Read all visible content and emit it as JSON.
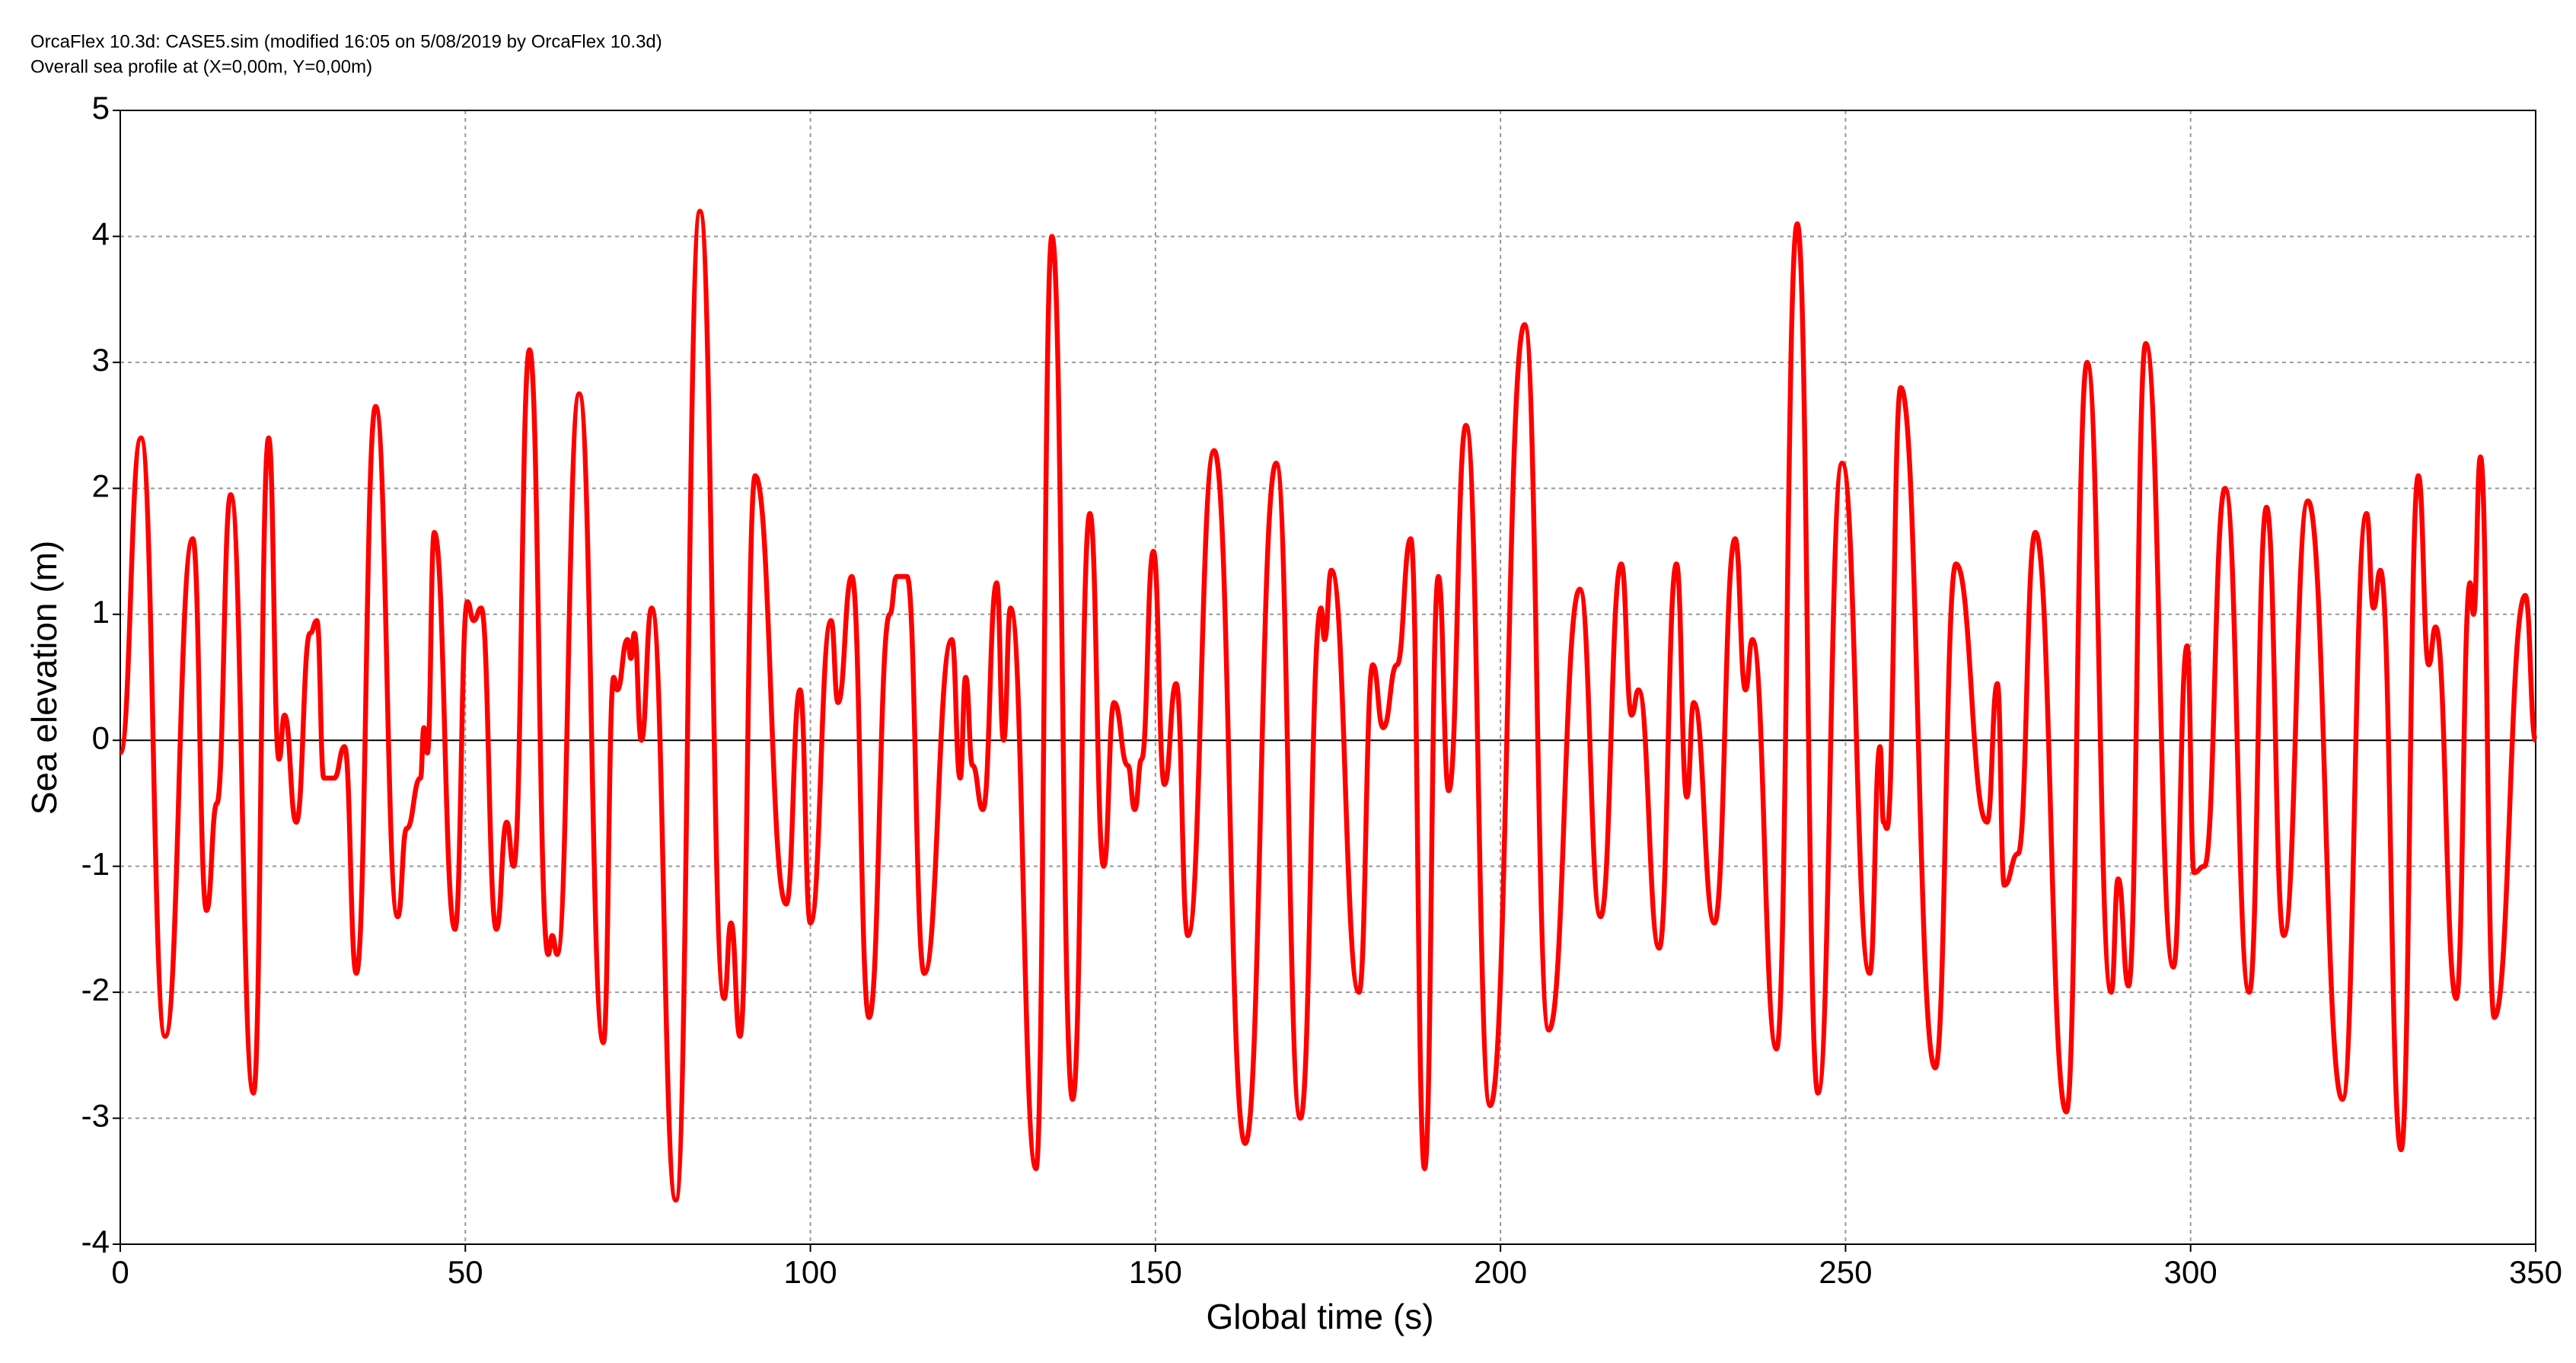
{
  "chart_data": {
    "type": "line",
    "title": "OrcaFlex 10.3d: CASE5.sim (modified 16:05 on 5/08/2019 by OrcaFlex 10.3d)",
    "subtitle": "Overall sea profile at (X=0,00m, Y=0,00m)",
    "x_label": "Global time (s)",
    "y_label": "Sea elevation (m)",
    "xlim": [
      0,
      350
    ],
    "xticks": [
      0,
      50,
      100,
      150,
      200,
      250,
      300,
      350
    ],
    "ylim": [
      -4,
      5
    ],
    "yticks": [
      -4,
      -3,
      -2,
      -1,
      0,
      1,
      2,
      3,
      4,
      5
    ],
    "grid": true,
    "series": [
      {
        "name": "Sea elevation",
        "color": "#ff0000",
        "x": [
          0,
          3,
          6.5,
          10.5,
          12.5,
          14,
          16,
          19.3,
          21.5,
          23,
          23.8,
          25.5,
          27.5,
          28.5,
          29.5,
          31,
          32.5,
          34.2,
          37,
          40.2,
          41.5,
          43.5,
          44,
          44.5,
          45.5,
          48.5,
          50.3,
          51.2,
          52.3,
          54.5,
          56,
          57,
          59.3,
          62,
          62.6,
          63.3,
          66.5,
          70,
          71.5,
          72,
          73.5,
          74,
          74.5,
          75.5,
          77,
          80.5,
          84,
          87.5,
          88.5,
          89.8,
          92,
          96.5,
          98.5,
          100,
          103,
          104,
          106,
          108.5,
          111.5,
          112.5,
          114,
          116.5,
          120.5,
          121.7,
          122.5,
          123.5,
          125,
          127,
          128,
          129,
          132.7,
          135,
          138,
          140.5,
          142.5,
          144,
          146,
          147,
          148,
          149.7,
          151.3,
          153,
          154.7,
          158.5,
          163,
          167.5,
          171,
          174,
          174.5,
          175.5,
          179.5,
          181.5,
          183,
          185,
          187,
          189,
          191,
          192.5,
          195,
          198.5,
          203.5,
          207,
          211.5,
          214.5,
          217.5,
          219,
          220,
          223,
          225.5,
          227,
          228,
          231,
          234,
          235.5,
          236.5,
          240,
          243,
          246,
          249.5,
          253.5,
          255,
          255.5,
          256,
          258,
          263,
          266,
          270.5,
          272,
          273,
          275,
          277.5,
          282,
          285,
          288.5,
          289.5,
          291,
          293.5,
          297.5,
          299.5,
          300.5,
          302,
          305,
          308.5,
          311,
          313.5,
          317,
          322,
          325.5,
          326.5,
          327.5,
          330.5,
          333,
          334.5,
          335.5,
          338.5,
          340.5,
          341,
          342,
          344,
          348.5,
          350
        ],
        "values": [
          -0.1,
          2.4,
          -2.35,
          1.6,
          -1.35,
          -0.5,
          1.95,
          -2.8,
          2.4,
          -0.15,
          0.2,
          -0.65,
          0.85,
          0.95,
          -0.3,
          -0.3,
          -0.05,
          -1.85,
          2.65,
          -1.4,
          -0.7,
          -0.3,
          0.1,
          -0.1,
          1.65,
          -1.5,
          1.1,
          0.95,
          1.05,
          -1.5,
          -0.65,
          -1.0,
          3.1,
          -1.7,
          -1.55,
          -1.7,
          2.75,
          -2.4,
          0.5,
          0.4,
          0.8,
          0.65,
          0.85,
          0.0,
          1.05,
          -3.65,
          4.2,
          -2.05,
          -1.45,
          -2.35,
          2.1,
          -1.3,
          0.4,
          -1.45,
          0.95,
          0.3,
          1.3,
          -2.2,
          1.0,
          1.3,
          1.3,
          -1.85,
          0.8,
          -0.3,
          0.5,
          -0.2,
          -0.55,
          1.25,
          0.0,
          1.05,
          -3.4,
          4.0,
          -2.85,
          1.8,
          -1.0,
          0.3,
          -0.2,
          -0.55,
          -0.15,
          1.5,
          -0.35,
          0.45,
          -1.55,
          2.3,
          -3.2,
          2.2,
          -3.0,
          1.05,
          0.8,
          1.35,
          -2.0,
          0.6,
          0.1,
          0.6,
          1.6,
          -3.4,
          1.3,
          -0.4,
          2.5,
          -2.9,
          3.3,
          -2.3,
          1.2,
          -1.4,
          1.4,
          0.2,
          0.4,
          -1.65,
          1.4,
          -0.45,
          0.3,
          -1.45,
          1.6,
          0.4,
          0.8,
          -2.45,
          4.1,
          -2.8,
          2.2,
          -1.85,
          -0.05,
          -0.65,
          -0.7,
          2.8,
          -2.6,
          1.4,
          -0.65,
          0.45,
          -1.15,
          -0.9,
          1.65,
          -2.95,
          3.0,
          -2.0,
          -1.1,
          -1.95,
          3.15,
          -1.8,
          0.75,
          -1.05,
          -1.0,
          2.0,
          -2.0,
          1.85,
          -1.55,
          1.9,
          -2.85,
          1.8,
          1.05,
          1.35,
          -3.25,
          2.1,
          0.6,
          0.9,
          -2.05,
          1.25,
          1.0,
          2.25,
          -2.2,
          1.15,
          0.0
        ]
      }
    ]
  }
}
